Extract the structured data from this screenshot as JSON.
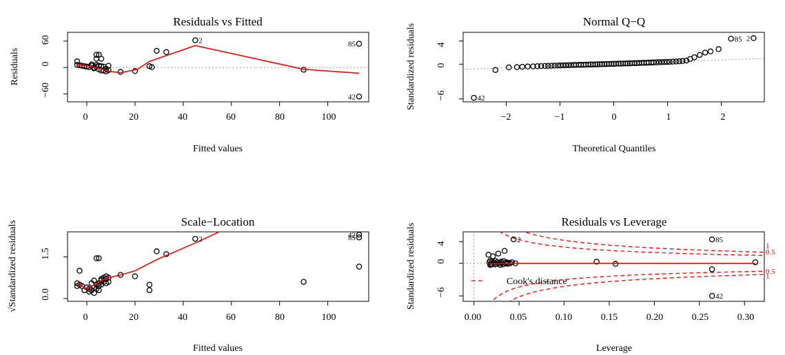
{
  "figure": {
    "panels": [
      {
        "id": "rvf",
        "title": "Residuals vs Fitted",
        "xlabel": "Fitted values",
        "ylabel": "Residuals",
        "xticks": [
          "0",
          "20",
          "40",
          "60",
          "80",
          "100"
        ],
        "yticks": [
          "−60",
          "0",
          "60"
        ]
      },
      {
        "id": "qq",
        "title": "Normal Q−Q",
        "xlabel": "Theoretical Quantiles",
        "ylabel": "Standardized residuals",
        "xticks": [
          "−2",
          "−1",
          "0",
          "1",
          "2"
        ],
        "yticks": [
          "−6",
          "0",
          "4"
        ]
      },
      {
        "id": "sl",
        "title": "Scale−Location",
        "xlabel": "Fitted values",
        "ylabel": "√Standardized residuals",
        "xticks": [
          "0",
          "20",
          "40",
          "60",
          "80",
          "100"
        ],
        "yticks": [
          "0.0",
          "1.5"
        ]
      },
      {
        "id": "rvl",
        "title": "Residuals vs Leverage",
        "xlabel": "Leverage",
        "ylabel": "Standardized residuals",
        "xticks": [
          "0.00",
          "0.05",
          "0.10",
          "0.15",
          "0.20",
          "0.25",
          "0.30"
        ],
        "yticks": [
          "−6",
          "0",
          "4"
        ],
        "cook_legend": "Cook's distance",
        "cook_labels": [
          "1",
          "0.5",
          "0.5",
          "1"
        ]
      }
    ]
  },
  "chart_data": [
    {
      "type": "scatter",
      "title": "Residuals vs Fitted",
      "xlabel": "Fitted values",
      "ylabel": "Residuals",
      "xlim": [
        -8,
        117
      ],
      "ylim": [
        -78,
        80
      ],
      "points": [
        [
          -4,
          14
        ],
        [
          -4,
          6
        ],
        [
          -3,
          5
        ],
        [
          -2,
          4
        ],
        [
          -1,
          3
        ],
        [
          0,
          2
        ],
        [
          1,
          1
        ],
        [
          2,
          4
        ],
        [
          2,
          7
        ],
        [
          3,
          0
        ],
        [
          3,
          -2
        ],
        [
          4,
          6
        ],
        [
          4,
          2
        ],
        [
          4,
          29
        ],
        [
          4,
          20
        ],
        [
          5,
          29
        ],
        [
          5,
          4
        ],
        [
          5,
          -4
        ],
        [
          6,
          3
        ],
        [
          6,
          20
        ],
        [
          6,
          -7
        ],
        [
          7,
          2
        ],
        [
          7,
          -7
        ],
        [
          8,
          -3
        ],
        [
          8,
          -9
        ],
        [
          9,
          4
        ],
        [
          9,
          -6
        ],
        [
          14,
          -10
        ],
        [
          20,
          -8
        ],
        [
          26,
          3
        ],
        [
          27,
          1
        ],
        [
          29,
          38
        ],
        [
          33,
          35
        ],
        [
          45,
          62
        ],
        [
          90,
          -5
        ],
        [
          113,
          54
        ],
        [
          113,
          -66
        ]
      ],
      "series": [
        {
          "name": "",
          "x": [
            -4,
            0,
            3,
            6,
            9,
            14,
            21,
            26,
            45,
            90,
            113
          ],
          "y": [
            6,
            4,
            1,
            -3,
            -8,
            -12,
            -4,
            14,
            50,
            -4,
            -13
          ]
        }
      ],
      "reference_line": 0,
      "annotations": [
        {
          "text": "2",
          "x": 45,
          "y": 62
        },
        {
          "text": "85",
          "x": 113,
          "y": 54
        },
        {
          "text": "42",
          "x": 113,
          "y": -66
        }
      ]
    },
    {
      "type": "scatter",
      "title": "Normal Q−Q",
      "xlabel": "Theoretical Quantiles",
      "ylabel": "Standardized residuals",
      "xlim": [
        -2.8,
        2.8
      ],
      "ylim": [
        -6.5,
        5.5
      ],
      "points": [
        [
          -2.6,
          -5.8
        ],
        [
          -2.2,
          -1.0
        ],
        [
          -1.95,
          -0.55
        ],
        [
          -1.8,
          -0.5
        ],
        [
          -1.7,
          -0.45
        ],
        [
          -1.6,
          -0.4
        ],
        [
          -1.5,
          -0.38
        ],
        [
          -1.42,
          -0.35
        ],
        [
          -1.35,
          -0.33
        ],
        [
          -1.28,
          -0.31
        ],
        [
          -1.22,
          -0.29
        ],
        [
          -1.16,
          -0.27
        ],
        [
          -1.1,
          -0.25
        ],
        [
          -1.04,
          -0.23
        ],
        [
          -0.99,
          -0.22
        ],
        [
          -0.94,
          -0.2
        ],
        [
          -0.89,
          -0.19
        ],
        [
          -0.84,
          -0.17
        ],
        [
          -0.79,
          -0.16
        ],
        [
          -0.74,
          -0.15
        ],
        [
          -0.7,
          -0.13
        ],
        [
          -0.65,
          -0.12
        ],
        [
          -0.61,
          -0.11
        ],
        [
          -0.56,
          -0.1
        ],
        [
          -0.52,
          -0.09
        ],
        [
          -0.47,
          -0.07
        ],
        [
          -0.43,
          -0.06
        ],
        [
          -0.39,
          -0.05
        ],
        [
          -0.34,
          -0.04
        ],
        [
          -0.3,
          -0.02
        ],
        [
          -0.26,
          -0.01
        ],
        [
          -0.22,
          0.0
        ],
        [
          -0.17,
          0.01
        ],
        [
          -0.13,
          0.02
        ],
        [
          -0.09,
          0.04
        ],
        [
          -0.04,
          0.05
        ],
        [
          0.0,
          0.06
        ],
        [
          0.04,
          0.08
        ],
        [
          0.09,
          0.09
        ],
        [
          0.13,
          0.1
        ],
        [
          0.17,
          0.11
        ],
        [
          0.22,
          0.13
        ],
        [
          0.26,
          0.14
        ],
        [
          0.3,
          0.15
        ],
        [
          0.34,
          0.17
        ],
        [
          0.39,
          0.18
        ],
        [
          0.43,
          0.19
        ],
        [
          0.47,
          0.21
        ],
        [
          0.52,
          0.22
        ],
        [
          0.56,
          0.24
        ],
        [
          0.61,
          0.25
        ],
        [
          0.65,
          0.27
        ],
        [
          0.7,
          0.28
        ],
        [
          0.74,
          0.3
        ],
        [
          0.79,
          0.32
        ],
        [
          0.84,
          0.34
        ],
        [
          0.89,
          0.35
        ],
        [
          0.94,
          0.37
        ],
        [
          0.99,
          0.39
        ],
        [
          1.04,
          0.41
        ],
        [
          1.1,
          0.43
        ],
        [
          1.16,
          0.46
        ],
        [
          1.22,
          0.5
        ],
        [
          1.28,
          0.55
        ],
        [
          1.35,
          0.62
        ],
        [
          1.42,
          0.9
        ],
        [
          1.5,
          1.2
        ],
        [
          1.6,
          1.6
        ],
        [
          1.7,
          2.0
        ],
        [
          1.8,
          2.2
        ],
        [
          1.95,
          2.6
        ],
        [
          2.18,
          4.4
        ],
        [
          2.6,
          4.5
        ]
      ],
      "reference_line": {
        "x": [
          -2.8,
          2.8
        ],
        "y": [
          -0.9,
          1.0
        ]
      },
      "annotations": [
        {
          "text": "42",
          "x": -2.6,
          "y": -5.8
        },
        {
          "text": "85",
          "x": 2.18,
          "y": 4.4
        },
        {
          "text": "2",
          "x": 2.6,
          "y": 4.5
        }
      ]
    },
    {
      "type": "scatter",
      "title": "Scale−Location",
      "xlabel": "Fitted values",
      "ylabel": "√Standardized residuals",
      "xlim": [
        -8,
        117
      ],
      "ylim": [
        -0.1,
        2.4
      ],
      "points": [
        [
          -4,
          0.55
        ],
        [
          -4,
          0.45
        ],
        [
          -3,
          1.0
        ],
        [
          -3,
          0.5
        ],
        [
          -2,
          0.45
        ],
        [
          -1,
          0.3
        ],
        [
          0,
          0.4
        ],
        [
          1,
          0.25
        ],
        [
          1,
          0.35
        ],
        [
          2,
          0.55
        ],
        [
          2,
          0.3
        ],
        [
          3,
          0.2
        ],
        [
          3,
          0.4
        ],
        [
          3,
          0.65
        ],
        [
          4,
          1.45
        ],
        [
          4,
          0.5
        ],
        [
          4,
          0.35
        ],
        [
          5,
          1.45
        ],
        [
          5,
          0.45
        ],
        [
          5,
          0.55
        ],
        [
          5,
          0.3
        ],
        [
          6,
          0.65
        ],
        [
          6,
          0.5
        ],
        [
          6,
          0.7
        ],
        [
          7,
          0.6
        ],
        [
          7,
          0.75
        ],
        [
          8,
          0.55
        ],
        [
          8,
          0.7
        ],
        [
          8,
          0.8
        ],
        [
          9,
          0.75
        ],
        [
          9,
          0.6
        ],
        [
          14,
          0.85
        ],
        [
          20,
          0.8
        ],
        [
          26,
          0.5
        ],
        [
          26,
          0.3
        ],
        [
          29,
          1.7
        ],
        [
          33,
          1.6
        ],
        [
          45,
          2.15
        ],
        [
          90,
          0.6
        ],
        [
          113,
          2.3
        ],
        [
          113,
          2.2
        ],
        [
          113,
          1.15
        ]
      ],
      "series": [
        {
          "name": "",
          "x": [
            -4,
            0,
            3,
            6,
            9,
            14,
            20,
            29,
            45,
            55
          ],
          "y": [
            0.55,
            0.35,
            0.5,
            0.65,
            0.75,
            0.85,
            1.0,
            1.4,
            2.0,
            2.4
          ]
        }
      ],
      "annotations": [
        {
          "text": "2",
          "x": 45,
          "y": 2.15
        },
        {
          "text": "42",
          "x": 113,
          "y": 2.3
        },
        {
          "text": "85",
          "x": 113,
          "y": 2.2
        }
      ]
    },
    {
      "type": "scatter",
      "title": "Residuals vs Leverage",
      "xlabel": "Leverage",
      "ylabel": "Standardized residuals",
      "xlim": [
        -0.012,
        0.322
      ],
      "ylim": [
        -7,
        5.8
      ],
      "points": [
        [
          0.016,
          1.6
        ],
        [
          0.017,
          0.2
        ],
        [
          0.018,
          -0.3
        ],
        [
          0.018,
          0.5
        ],
        [
          0.019,
          -0.2
        ],
        [
          0.02,
          0.3
        ],
        [
          0.02,
          -0.1
        ],
        [
          0.021,
          1.3
        ],
        [
          0.022,
          0.1
        ],
        [
          0.023,
          -0.2
        ],
        [
          0.024,
          0.4
        ],
        [
          0.025,
          -0.1
        ],
        [
          0.026,
          0.2
        ],
        [
          0.027,
          1.8
        ],
        [
          0.028,
          0.0
        ],
        [
          0.029,
          -0.3
        ],
        [
          0.03,
          0.3
        ],
        [
          0.031,
          0.1
        ],
        [
          0.032,
          -0.2
        ],
        [
          0.033,
          0.4
        ],
        [
          0.034,
          2.3
        ],
        [
          0.035,
          0.0
        ],
        [
          0.036,
          0.2
        ],
        [
          0.037,
          -0.1
        ],
        [
          0.038,
          0.1
        ],
        [
          0.04,
          0.0
        ],
        [
          0.042,
          0.2
        ],
        [
          0.044,
          4.4
        ],
        [
          0.046,
          0.0
        ],
        [
          0.136,
          0.3
        ],
        [
          0.157,
          -0.1
        ],
        [
          0.264,
          4.4
        ],
        [
          0.264,
          -1.1
        ],
        [
          0.264,
          -6.0
        ],
        [
          0.312,
          0.2
        ]
      ],
      "series": [
        {
          "name": "",
          "x": [
            0.016,
            0.05,
            0.1,
            0.15,
            0.2,
            0.25,
            0.312
          ],
          "y": [
            -0.1,
            0.0,
            0.0,
            0.0,
            0.0,
            0.0,
            0.0
          ]
        }
      ],
      "cooks_distance_levels": [
        0.5,
        1
      ],
      "annotations": [
        {
          "text": "2",
          "x": 0.044,
          "y": 4.4
        },
        {
          "text": "85",
          "x": 0.264,
          "y": 4.4
        },
        {
          "text": "42",
          "x": 0.264,
          "y": -6.0
        }
      ]
    }
  ]
}
